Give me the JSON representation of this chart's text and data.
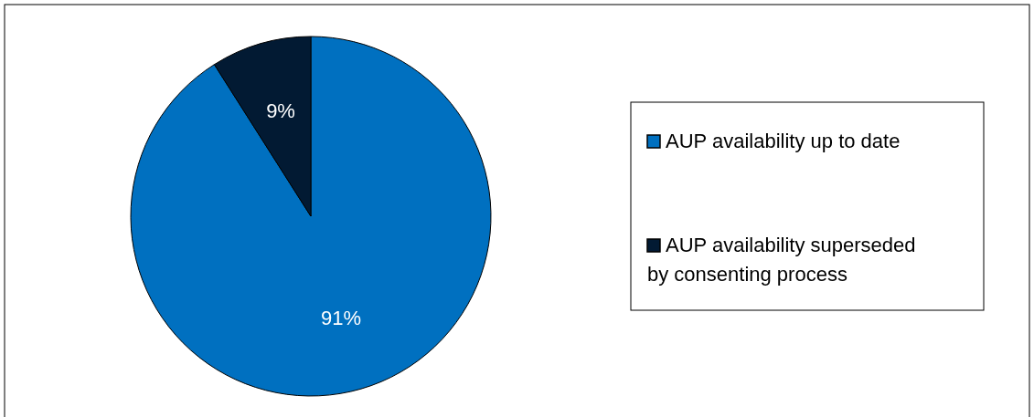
{
  "chart_data": {
    "type": "pie",
    "categories": [
      "AUP availability up to date",
      "AUP availability superseded by consenting process"
    ],
    "values": [
      91,
      9
    ],
    "colors": [
      "#0070c0",
      "#021a33"
    ],
    "value_labels": [
      "91%",
      "9%"
    ],
    "legend": "right"
  }
}
